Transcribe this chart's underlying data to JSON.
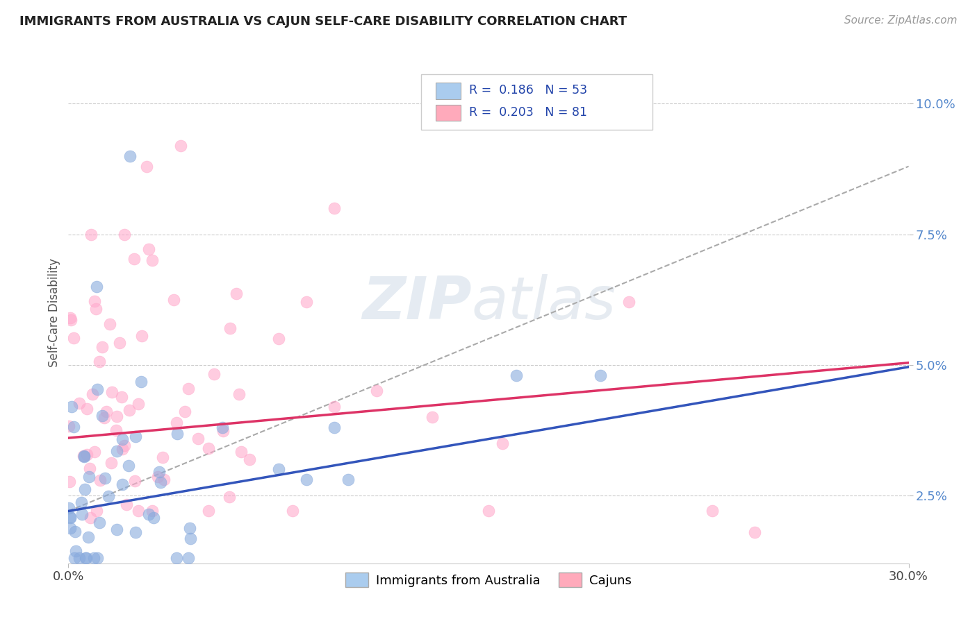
{
  "title": "IMMIGRANTS FROM AUSTRALIA VS CAJUN SELF-CARE DISABILITY CORRELATION CHART",
  "source": "Source: ZipAtlas.com",
  "ylabel": "Self-Care Disability",
  "xlim": [
    0.0,
    0.3
  ],
  "ylim": [
    0.012,
    0.108
  ],
  "y_ticks": [
    0.025,
    0.05,
    0.075,
    0.1
  ],
  "y_tick_labels": [
    "2.5%",
    "5.0%",
    "7.5%",
    "10.0%"
  ],
  "legend_color1": "#aaccee",
  "legend_color2": "#ffaabb",
  "blue_color": "#88aadd",
  "pink_color": "#ffaacc",
  "trend_blue": "#3355bb",
  "trend_pink": "#dd3366",
  "trend_dashed_color": "#aaaaaa",
  "blue_intercept": 0.022,
  "blue_slope": 0.092,
  "pink_intercept": 0.036,
  "pink_slope": 0.048,
  "dashed_intercept": 0.022,
  "dashed_slope": 0.22
}
